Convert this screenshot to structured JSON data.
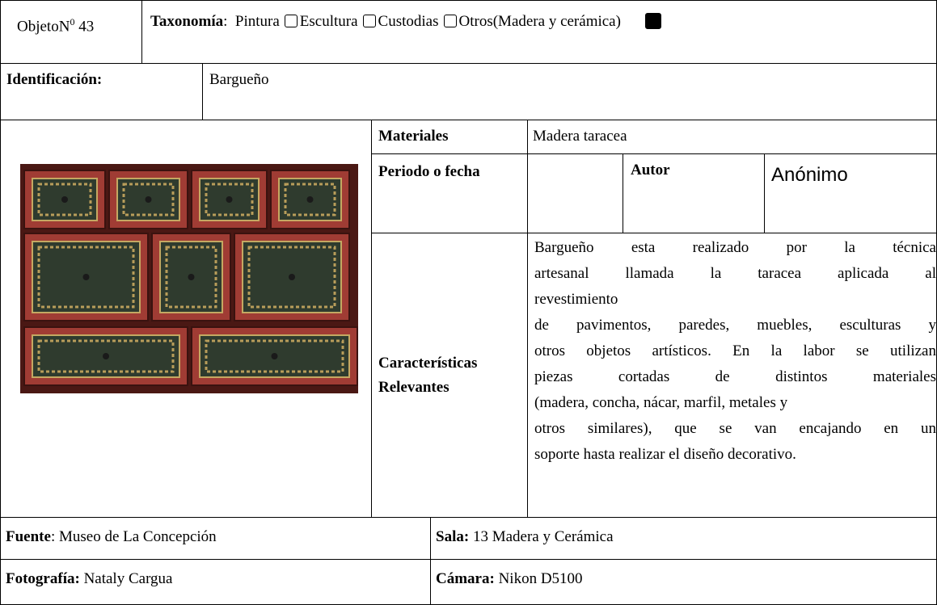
{
  "objeto": {
    "label": "ObjetoN",
    "sup": "0",
    "number": "43"
  },
  "taxonomia": {
    "label": "Taxonomía",
    "colon": ":",
    "options": [
      "Pintura",
      "Escultura",
      "Custodias",
      "Otros(Madera y cerámica)"
    ],
    "selected": 3
  },
  "identificacion": {
    "label": "Identificación:",
    "value": "Bargueño"
  },
  "materiales": {
    "label": "Materiales",
    "value": "Madera taracea"
  },
  "periodo": {
    "label": "Periodo o fecha",
    "value": null
  },
  "autor": {
    "label": "Autor",
    "value": "Anónimo"
  },
  "caracteristicas": {
    "label": "Características Relevantes",
    "lines": [
      "Bargueño esta realizado por la técnica",
      "artesanal llamada la taracea aplicada al",
      "revestimiento",
      "de pavimentos, paredes, muebles, esculturas y",
      "otros objetos artísticos. En la labor se utilizan",
      "piezas cortadas de distintos materiales",
      "(madera, concha, nácar, marfil, metales y",
      "otros similares), que se van encajando en un",
      "soporte hasta realizar el diseño decorativo."
    ]
  },
  "fuente": {
    "label": "Fuente",
    "value": ": Museo de La Concepción"
  },
  "sala": {
    "label": "Sala:",
    "value": " 13 Madera y Cerámica"
  },
  "fotografia": {
    "label": "Fotografía:",
    "value": " Nataly Cargua"
  },
  "camara": {
    "label": "Cámara:",
    "value": " Nikon D5100"
  }
}
